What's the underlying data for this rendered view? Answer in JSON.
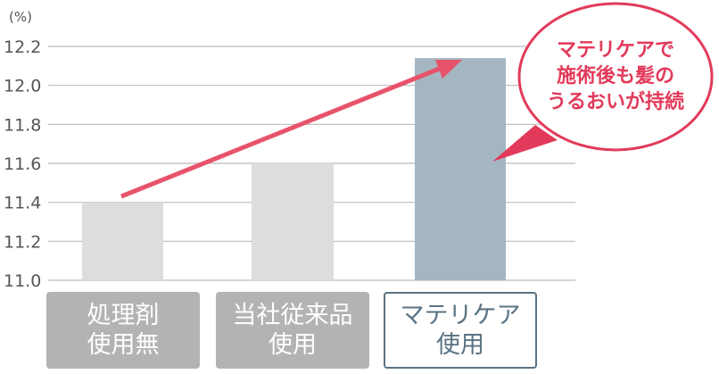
{
  "chart_data": {
    "type": "bar",
    "ylabel": "(%)",
    "ylim": [
      11.0,
      12.2
    ],
    "yticks": [
      "11.0",
      "11.2",
      "11.4",
      "11.6",
      "11.8",
      "12.0",
      "12.2"
    ],
    "grid": true,
    "categories": [
      [
        "処理剤",
        "使用無"
      ],
      [
        "当社従来品",
        "使用"
      ],
      [
        "マテリケア",
        "使用"
      ]
    ],
    "values": [
      11.4,
      11.6,
      12.14
    ],
    "bar_colors": [
      "#dcdddc",
      "#dcdddc",
      "#a4b6c1"
    ],
    "annotation": {
      "lines": [
        "マテリケアで",
        "施術後も髪の",
        "うるおいが持続"
      ],
      "color": "#e23a5a"
    },
    "arrow_color": "#e8536c"
  }
}
